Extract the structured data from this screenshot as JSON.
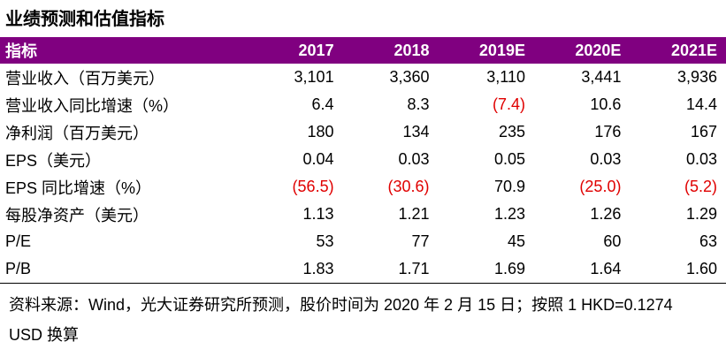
{
  "header": {
    "title": "业绩预测和估值指标"
  },
  "table": {
    "columns": [
      "指标",
      "2017",
      "2018",
      "2019E",
      "2020E",
      "2021E"
    ],
    "rows": [
      [
        "营业收入（百万美元）",
        "3,101",
        "3,360",
        "3,110",
        "3,441",
        "3,936"
      ],
      [
        "营业收入同比增速（%）",
        "6.4",
        "8.3",
        "(7.4)",
        "10.6",
        "14.4"
      ],
      [
        "净利润（百万美元）",
        "180",
        "134",
        "235",
        "176",
        "167"
      ],
      [
        "EPS（美元）",
        "0.04",
        "0.03",
        "0.05",
        "0.03",
        "0.03"
      ],
      [
        "EPS 同比增速（%）",
        "(56.5)",
        "(30.6)",
        "70.9",
        "(25.0)",
        "(5.2)"
      ],
      [
        "每股净资产（美元）",
        "1.13",
        "1.21",
        "1.23",
        "1.26",
        "1.29"
      ],
      [
        "P/E",
        "53",
        "77",
        "45",
        "60",
        "63"
      ],
      [
        "P/B",
        "1.83",
        "1.71",
        "1.69",
        "1.64",
        "1.60"
      ]
    ]
  },
  "footer": {
    "source": "资料来源：Wind，光大证券研究所预测，股价时间为 2020 年 2 月 15 日；按照 1 HKD=0.1274 USD 换算"
  }
}
